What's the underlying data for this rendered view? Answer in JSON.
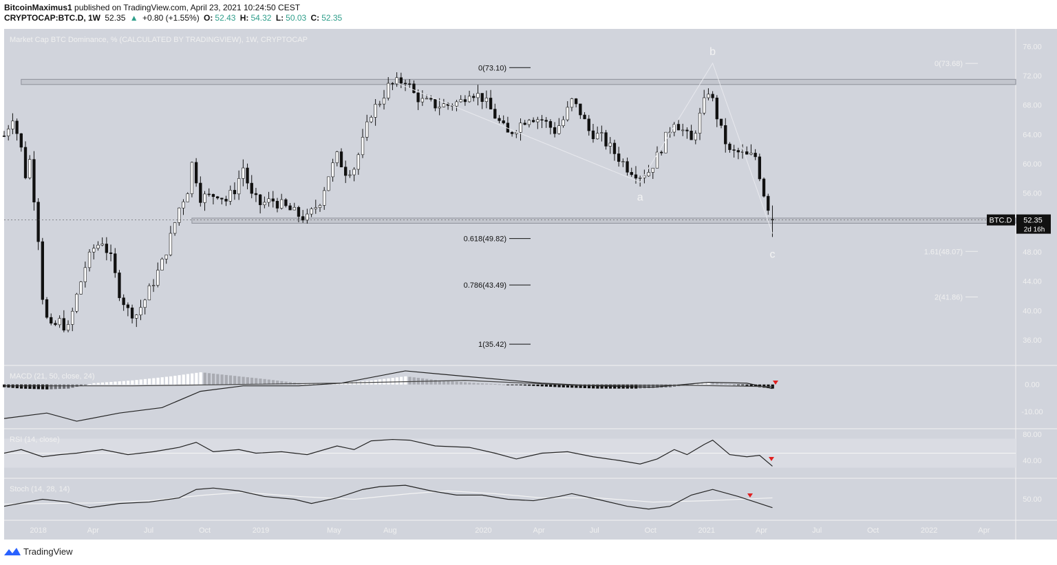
{
  "header": {
    "author": "BitcoinMaximus1",
    "published": "published on TradingView.com, April 23, 2021 10:24:50 CEST",
    "symbol": "CRYPTOCAP:BTC.D, 1W",
    "last": "52.35",
    "change": "+0.80 (+1.55%)",
    "o_label": "O:",
    "o_val": "52.43",
    "h_label": "H:",
    "h_val": "54.32",
    "l_label": "L:",
    "l_val": "50.03",
    "c_label": "C:",
    "c_val": "52.35"
  },
  "colors": {
    "background": "#d1d4dc",
    "candle_up": "#ffffff",
    "candle_down": "#111111",
    "text_light": "#f0f0f0",
    "marker": "#e02020"
  },
  "footer": {
    "brand": "TradingView",
    "icon": "tradingview-logo-icon"
  },
  "chart_data": [
    {
      "type": "candlestick",
      "title": "Market Cap BTC Dominance, % (CALCULATED BY TRADINGVIEW), 1W, CRYPTOCAP",
      "ylim": [
        33,
        78
      ],
      "yticks": [
        "76.00",
        "72.00",
        "68.00",
        "64.00",
        "60.00",
        "56.00",
        "52.00",
        "48.00",
        "44.00",
        "40.00",
        "36.00"
      ],
      "x_range": [
        "2017-11-06",
        "2022-05-23"
      ],
      "xticks": [
        {
          "label": "2018",
          "date": "2018-01-01"
        },
        {
          "label": "Apr",
          "date": "2018-04-01"
        },
        {
          "label": "Jul",
          "date": "2018-07-01"
        },
        {
          "label": "Oct",
          "date": "2018-10-01"
        },
        {
          "label": "2019",
          "date": "2019-01-01"
        },
        {
          "label": "May",
          "date": "2019-05-01"
        },
        {
          "label": "Aug",
          "date": "2019-08-01"
        },
        {
          "label": "2020",
          "date": "2020-01-01"
        },
        {
          "label": "Apr",
          "date": "2020-04-01"
        },
        {
          "label": "Jul",
          "date": "2020-07-01"
        },
        {
          "label": "Oct",
          "date": "2020-10-01"
        },
        {
          "label": "2021",
          "date": "2021-01-01"
        },
        {
          "label": "Apr",
          "date": "2021-04-01"
        },
        {
          "label": "Jul",
          "date": "2021-07-01"
        },
        {
          "label": "Oct",
          "date": "2021-10-01"
        },
        {
          "label": "2022",
          "date": "2022-01-01"
        },
        {
          "label": "Apr",
          "date": "2022-04-01"
        }
      ],
      "path_points": [
        [
          "2017-11-06",
          63.8
        ],
        [
          "2017-11-20",
          66.5
        ],
        [
          "2017-12-04",
          62.0
        ],
        [
          "2017-12-11",
          58.5
        ],
        [
          "2017-12-18",
          60.5
        ],
        [
          "2017-12-25",
          55.5
        ],
        [
          "2018-01-01",
          50.0
        ],
        [
          "2018-01-08",
          42.0
        ],
        [
          "2018-01-15",
          38.8
        ],
        [
          "2018-01-22",
          37.5
        ],
        [
          "2018-02-05",
          38.5
        ],
        [
          "2018-02-19",
          37.5
        ],
        [
          "2018-03-05",
          42.0
        ],
        [
          "2018-03-19",
          46.0
        ],
        [
          "2018-04-02",
          48.5
        ],
        [
          "2018-04-16",
          49.5
        ],
        [
          "2018-04-30",
          47.0
        ],
        [
          "2018-05-14",
          42.5
        ],
        [
          "2018-05-28",
          40.0
        ],
        [
          "2018-06-11",
          39.5
        ],
        [
          "2018-06-25",
          41.5
        ],
        [
          "2018-07-09",
          44.0
        ],
        [
          "2018-07-23",
          46.5
        ],
        [
          "2018-08-06",
          50.0
        ],
        [
          "2018-08-20",
          54.0
        ],
        [
          "2018-09-03",
          56.5
        ],
        [
          "2018-09-10",
          60.0
        ],
        [
          "2018-09-17",
          58.0
        ],
        [
          "2018-09-24",
          55.5
        ],
        [
          "2018-10-08",
          55.5
        ],
        [
          "2018-10-22",
          56.0
        ],
        [
          "2018-11-05",
          55.0
        ],
        [
          "2018-11-19",
          56.5
        ],
        [
          "2018-12-03",
          59.5
        ],
        [
          "2018-12-17",
          55.5
        ],
        [
          "2018-12-31",
          54.5
        ],
        [
          "2019-01-21",
          55.0
        ],
        [
          "2019-02-11",
          54.0
        ],
        [
          "2019-03-04",
          53.0
        ],
        [
          "2019-03-18",
          52.5
        ],
        [
          "2019-04-08",
          55.0
        ],
        [
          "2019-04-22",
          58.5
        ],
        [
          "2019-05-06",
          61.0
        ],
        [
          "2019-05-20",
          59.0
        ],
        [
          "2019-06-03",
          59.5
        ],
        [
          "2019-06-17",
          63.0
        ],
        [
          "2019-07-01",
          67.0
        ],
        [
          "2019-07-15",
          68.5
        ],
        [
          "2019-07-29",
          70.5
        ],
        [
          "2019-08-12",
          71.0
        ],
        [
          "2019-08-26",
          71.5
        ],
        [
          "2019-09-09",
          69.5
        ],
        [
          "2019-09-23",
          68.5
        ],
        [
          "2019-10-14",
          68.0
        ],
        [
          "2019-11-04",
          68.0
        ],
        [
          "2019-11-25",
          68.5
        ],
        [
          "2019-12-09",
          70.0
        ],
        [
          "2019-12-30",
          69.0
        ],
        [
          "2020-01-20",
          66.5
        ],
        [
          "2020-02-10",
          64.0
        ],
        [
          "2020-02-24",
          65.0
        ],
        [
          "2020-03-16",
          66.5
        ],
        [
          "2020-04-06",
          66.0
        ],
        [
          "2020-04-27",
          64.5
        ],
        [
          "2020-05-11",
          66.0
        ],
        [
          "2020-05-25",
          68.5
        ],
        [
          "2020-06-08",
          67.0
        ],
        [
          "2020-06-22",
          64.5
        ],
        [
          "2020-07-13",
          63.5
        ],
        [
          "2020-08-03",
          61.5
        ],
        [
          "2020-08-24",
          59.5
        ],
        [
          "2020-09-14",
          58.5
        ],
        [
          "2020-09-28",
          59.0
        ],
        [
          "2020-10-12",
          61.0
        ],
        [
          "2020-10-26",
          63.5
        ],
        [
          "2020-11-09",
          66.0
        ],
        [
          "2020-11-23",
          64.5
        ],
        [
          "2020-12-07",
          63.0
        ],
        [
          "2020-12-21",
          66.5
        ],
        [
          "2021-01-04",
          70.0
        ],
        [
          "2021-01-11",
          68.5
        ],
        [
          "2021-01-25",
          64.5
        ],
        [
          "2021-02-08",
          61.5
        ],
        [
          "2021-02-22",
          61.5
        ],
        [
          "2021-03-08",
          61.0
        ],
        [
          "2021-03-22",
          61.0
        ],
        [
          "2021-04-05",
          56.0
        ],
        [
          "2021-04-19",
          52.35
        ]
      ],
      "horizontal_zones": [
        {
          "from": "2017-12-04",
          "to": "2022-05-23",
          "low": 70.8,
          "high": 71.5
        },
        {
          "from": "2018-09-10",
          "to": "2022-05-23",
          "low": 51.9,
          "high": 52.6
        }
      ],
      "fib_retracement": [
        {
          "label": "0(73.10)",
          "value": 73.1
        },
        {
          "label": "0.618(49.82)",
          "value": 49.82
        },
        {
          "label": "0.786(43.49)",
          "value": 43.49
        },
        {
          "label": "1(35.42)",
          "value": 35.42
        }
      ],
      "fib_extension": [
        {
          "label": "0(73.68)",
          "value": 73.68
        },
        {
          "label": "1.61(48.07)",
          "value": 48.07
        },
        {
          "label": "2(41.86)",
          "value": 41.86
        }
      ],
      "wave_labels": [
        {
          "text": "b",
          "date": "2021-01-11",
          "value": 74.8
        },
        {
          "text": "a",
          "date": "2020-09-14",
          "value": 55.0
        },
        {
          "text": "c",
          "date": "2021-04-19",
          "value": 47.2
        }
      ],
      "last_price": {
        "symbol": "BTC.D",
        "value": "52.35",
        "countdown": "2d 16h"
      }
    },
    {
      "type": "line",
      "title": "MACD (21, 50, close, 24)",
      "yticks": [
        "0.00",
        "-10.00"
      ],
      "ylim": [
        -15,
        6
      ],
      "series": [
        {
          "role": "macd",
          "points": [
            [
              "2017-11-06",
              -12.5
            ],
            [
              "2018-01-15",
              -10.5
            ],
            [
              "2018-03-05",
              -13.5
            ],
            [
              "2018-05-14",
              -10.5
            ],
            [
              "2018-07-23",
              -8.5
            ],
            [
              "2018-09-24",
              -2.5
            ],
            [
              "2018-12-03",
              -0.5
            ],
            [
              "2019-03-04",
              -0.5
            ],
            [
              "2019-05-13",
              0.5
            ],
            [
              "2019-08-26",
              5.0
            ],
            [
              "2019-12-02",
              3.0
            ],
            [
              "2020-04-06",
              0.5
            ],
            [
              "2020-07-06",
              -0.5
            ],
            [
              "2020-10-05",
              -1.0
            ],
            [
              "2021-01-04",
              0.8
            ],
            [
              "2021-03-08",
              0.5
            ],
            [
              "2021-04-19",
              -1.5
            ]
          ]
        },
        {
          "role": "signal",
          "points": [
            [
              "2017-11-06",
              -0.5
            ],
            [
              "2018-06-04",
              -0.5
            ],
            [
              "2019-05-06",
              0.5
            ],
            [
              "2019-12-02",
              1.5
            ],
            [
              "2020-06-01",
              -0.3
            ],
            [
              "2020-12-07",
              -0.3
            ],
            [
              "2021-04-19",
              -0.8
            ]
          ]
        }
      ],
      "histogram": [
        [
          "2017-11-06",
          -1.0
        ],
        [
          "2017-12-04",
          -1.5
        ],
        [
          "2018-01-15",
          -1.8
        ],
        [
          "2018-02-19",
          -1.5
        ],
        [
          "2018-04-02",
          0.5
        ],
        [
          "2018-06-04",
          1.5
        ],
        [
          "2018-08-06",
          3.0
        ],
        [
          "2018-09-24",
          4.5
        ],
        [
          "2018-11-05",
          3.5
        ],
        [
          "2019-01-07",
          2.0
        ],
        [
          "2019-03-04",
          0.5
        ],
        [
          "2019-05-06",
          0.5
        ],
        [
          "2019-07-01",
          1.5
        ],
        [
          "2019-08-26",
          3.0
        ],
        [
          "2019-10-21",
          1.5
        ],
        [
          "2019-12-23",
          0.5
        ],
        [
          "2020-03-02",
          -0.3
        ],
        [
          "2020-05-04",
          -1.0
        ],
        [
          "2020-07-06",
          -1.5
        ],
        [
          "2020-09-07",
          -1.5
        ],
        [
          "2020-11-02",
          -1.0
        ],
        [
          "2021-01-04",
          0.8
        ],
        [
          "2021-03-01",
          -0.3
        ],
        [
          "2021-04-19",
          -1.5
        ]
      ]
    },
    {
      "type": "line",
      "title": "RSI (14, close)",
      "yticks": [
        "80.00",
        "40.00"
      ],
      "ylim": [
        20,
        80
      ],
      "series": [
        {
          "role": "rsi",
          "points": [
            [
              "2017-11-06",
              50
            ],
            [
              "2017-12-04",
              55
            ],
            [
              "2018-01-08",
              45
            ],
            [
              "2018-02-05",
              48
            ],
            [
              "2018-03-05",
              50
            ],
            [
              "2018-04-16",
              55
            ],
            [
              "2018-05-28",
              48
            ],
            [
              "2018-07-09",
              52
            ],
            [
              "2018-08-20",
              58
            ],
            [
              "2018-09-17",
              65
            ],
            [
              "2018-10-15",
              52
            ],
            [
              "2018-11-26",
              55
            ],
            [
              "2018-12-24",
              50
            ],
            [
              "2019-02-04",
              52
            ],
            [
              "2019-03-18",
              48
            ],
            [
              "2019-05-06",
              60
            ],
            [
              "2019-06-03",
              55
            ],
            [
              "2019-07-01",
              67
            ],
            [
              "2019-08-05",
              69
            ],
            [
              "2019-09-02",
              68
            ],
            [
              "2019-10-14",
              60
            ],
            [
              "2019-12-09",
              58
            ],
            [
              "2020-01-20",
              50
            ],
            [
              "2020-02-24",
              42
            ],
            [
              "2020-04-06",
              50
            ],
            [
              "2020-05-18",
              52
            ],
            [
              "2020-06-29",
              45
            ],
            [
              "2020-08-10",
              40
            ],
            [
              "2020-09-14",
              35
            ],
            [
              "2020-10-12",
              42
            ],
            [
              "2020-11-09",
              55
            ],
            [
              "2020-11-30",
              48
            ],
            [
              "2020-12-28",
              62
            ],
            [
              "2021-01-11",
              68
            ],
            [
              "2021-02-08",
              48
            ],
            [
              "2021-03-08",
              45
            ],
            [
              "2021-03-29",
              47
            ],
            [
              "2021-04-19",
              32
            ]
          ]
        }
      ]
    },
    {
      "type": "line",
      "title": "Stoch (14, 28, 14)",
      "yticks": [
        "50.00"
      ],
      "ylim": [
        -10,
        120
      ],
      "series": [
        {
          "role": "k",
          "points": [
            [
              "2017-11-06",
              30
            ],
            [
              "2018-01-08",
              55
            ],
            [
              "2018-02-19",
              45
            ],
            [
              "2018-03-26",
              25
            ],
            [
              "2018-05-14",
              40
            ],
            [
              "2018-07-02",
              45
            ],
            [
              "2018-08-20",
              60
            ],
            [
              "2018-09-17",
              90
            ],
            [
              "2018-10-15",
              95
            ],
            [
              "2018-11-26",
              85
            ],
            [
              "2019-01-07",
              65
            ],
            [
              "2019-02-25",
              55
            ],
            [
              "2019-03-25",
              40
            ],
            [
              "2019-05-06",
              60
            ],
            [
              "2019-06-17",
              90
            ],
            [
              "2019-07-15",
              100
            ],
            [
              "2019-08-26",
              105
            ],
            [
              "2019-10-07",
              85
            ],
            [
              "2019-11-18",
              70
            ],
            [
              "2019-12-30",
              70
            ],
            [
              "2020-02-10",
              55
            ],
            [
              "2020-03-23",
              50
            ],
            [
              "2020-05-04",
              65
            ],
            [
              "2020-05-25",
              75
            ],
            [
              "2020-07-06",
              55
            ],
            [
              "2020-08-24",
              30
            ],
            [
              "2020-09-28",
              20
            ],
            [
              "2020-11-02",
              30
            ],
            [
              "2020-12-07",
              70
            ],
            [
              "2021-01-11",
              90
            ],
            [
              "2021-02-22",
              65
            ],
            [
              "2021-04-19",
              25
            ]
          ]
        },
        {
          "role": "d",
          "points": [
            [
              "2017-11-06",
              38
            ],
            [
              "2018-04-02",
              42
            ],
            [
              "2018-07-02",
              50
            ],
            [
              "2018-10-01",
              70
            ],
            [
              "2018-12-03",
              80
            ],
            [
              "2019-03-04",
              65
            ],
            [
              "2019-06-03",
              55
            ],
            [
              "2019-09-02",
              75
            ],
            [
              "2019-11-04",
              85
            ],
            [
              "2020-01-20",
              75
            ],
            [
              "2020-04-06",
              60
            ],
            [
              "2020-07-06",
              60
            ],
            [
              "2020-10-05",
              45
            ],
            [
              "2021-01-04",
              50
            ],
            [
              "2021-04-19",
              60
            ]
          ]
        }
      ]
    }
  ]
}
